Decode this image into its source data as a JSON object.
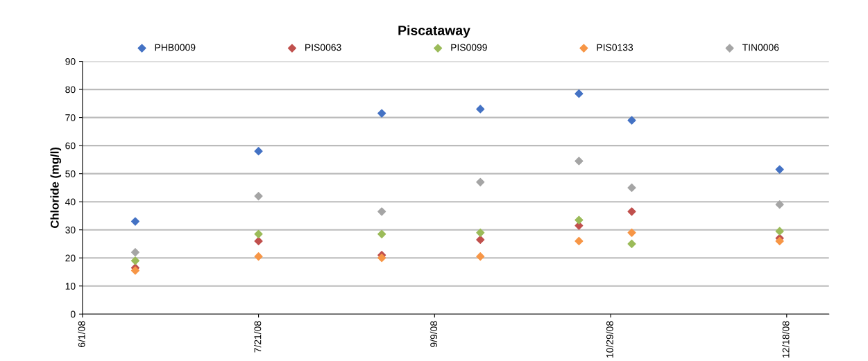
{
  "chart_data": {
    "type": "scatter",
    "title": "Piscataway",
    "ylabel": "Chloride (mg/l)",
    "x": [
      "2008-06-16",
      "2008-07-21",
      "2008-08-25",
      "2008-09-22",
      "2008-10-20",
      "2008-11-04",
      "2008-12-16"
    ],
    "series": [
      {
        "name": "PHB0009",
        "color": "#4472c4",
        "values": [
          33,
          58,
          71.5,
          73,
          78.5,
          69,
          51.5
        ]
      },
      {
        "name": "PIS0063",
        "color": "#c0504d",
        "values": [
          16.5,
          26,
          21,
          26.5,
          31.5,
          36.5,
          27
        ]
      },
      {
        "name": "PIS0099",
        "color": "#9bbb59",
        "values": [
          19,
          28.5,
          28.5,
          29,
          33.5,
          25,
          29.5
        ]
      },
      {
        "name": "PIS0133",
        "color": "#f79646",
        "values": [
          15.5,
          20.5,
          20,
          20.5,
          26,
          29,
          26
        ]
      },
      {
        "name": "TIN0006",
        "color": "#a5a5a5",
        "values": [
          22,
          42,
          36.5,
          47,
          54.5,
          45,
          39
        ]
      }
    ],
    "xlim": [
      "2008-06-01",
      "2008-12-30"
    ],
    "xticks": [
      {
        "value": "2008-06-01",
        "label": "6/1/08"
      },
      {
        "value": "2008-07-21",
        "label": "7/21/08"
      },
      {
        "value": "2008-09-09",
        "label": "9/9/08"
      },
      {
        "value": "2008-10-29",
        "label": "10/29/08"
      },
      {
        "value": "2008-12-18",
        "label": "12/18/08"
      }
    ],
    "ylim": [
      0,
      90
    ],
    "yticks": [
      0,
      10,
      20,
      30,
      40,
      50,
      60,
      70,
      80,
      90
    ],
    "grid": "y",
    "legend": "top",
    "marker": "diamond"
  }
}
